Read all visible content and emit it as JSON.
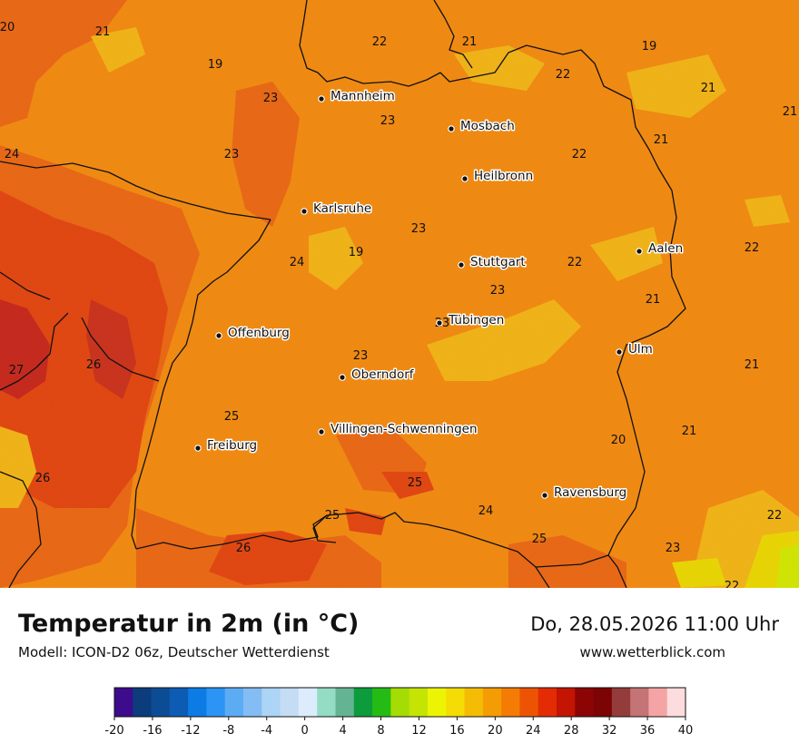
{
  "title": "Temperatur in 2m (in °C)",
  "subtitle": "Modell: ICON-D2 06z, Deutscher Wetterdienst",
  "datetime": "Do, 28.05.2026 11:00 Uhr",
  "website": "www.wetterblick.com",
  "colors": {
    "base": "#f0880e",
    "warm": "#e86612",
    "hot": "#e0440e",
    "hottest": "#c4261a",
    "cooler": "#f0b214",
    "cool": "#e8d400",
    "coolest": "#d0e400",
    "border": "#111111",
    "city_dot": "#111111"
  },
  "cities": [
    {
      "name": "Mannheim"
    },
    {
      "name": "Mosbach"
    },
    {
      "name": "Heilbronn"
    },
    {
      "name": "Karlsruhe"
    },
    {
      "name": "Stuttgart"
    },
    {
      "name": "Aalen"
    },
    {
      "name": "Tübingen"
    },
    {
      "name": "Offenburg"
    },
    {
      "name": "Ulm"
    },
    {
      "name": "Oberndorf"
    },
    {
      "name": "Villingen-Schwenningen"
    },
    {
      "name": "Freiburg"
    },
    {
      "name": "Ravensburg"
    }
  ],
  "temperature_labels": [
    "20",
    "21",
    "19",
    "22",
    "21",
    "19",
    "22",
    "21",
    "21",
    "23",
    "23",
    "21",
    "24",
    "23",
    "22",
    "23",
    "22",
    "24",
    "19",
    "22",
    "23",
    "21",
    "23",
    "27",
    "26",
    "21",
    "25",
    "23",
    "21",
    "20",
    "26",
    "25",
    "25",
    "24",
    "22",
    "26",
    "25",
    "23",
    "22"
  ],
  "legend": {
    "ticks": [
      "-20",
      "-16",
      "-12",
      "-8",
      "-4",
      "0",
      "4",
      "8",
      "12",
      "16",
      "20",
      "24",
      "28",
      "32",
      "36",
      "40"
    ],
    "colors": [
      "#3c0c8c",
      "#0c3c7c",
      "#0c4c94",
      "#0c5cb4",
      "#0c7ce4",
      "#2c94f4",
      "#5cacf4",
      "#84bcf4",
      "#acd4f4",
      "#c4dcf4",
      "#dcecfc",
      "#94dcc4",
      "#64b494",
      "#0c9c3c",
      "#24bc14",
      "#a4dc04",
      "#c4e404",
      "#ecf404",
      "#f4dc04",
      "#f4bc04",
      "#f49c04",
      "#f47c04",
      "#ec5404",
      "#e42c04",
      "#c41404",
      "#8c0404",
      "#7c0404",
      "#943c3c",
      "#c47474",
      "#f4a4a4",
      "#fcdcdc"
    ]
  }
}
